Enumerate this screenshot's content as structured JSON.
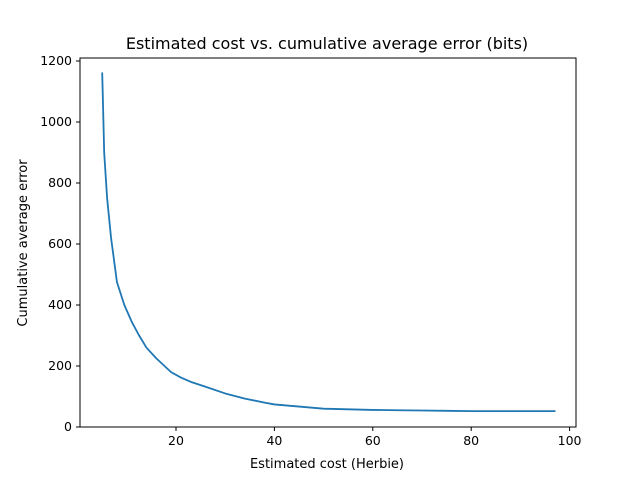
{
  "chart_data": {
    "type": "line",
    "title": "Estimated cost vs. cumulative average error (bits)",
    "xlabel": "Estimated cost (Herbie)",
    "ylabel": "Cumulative average error",
    "xlim": [
      0,
      100
    ],
    "ylim": [
      0,
      1200
    ],
    "x_ticks": [
      20,
      40,
      60,
      80,
      100
    ],
    "y_ticks": [
      0,
      200,
      400,
      600,
      800,
      1000,
      1200
    ],
    "x_tick_labels": [
      "20",
      "40",
      "60",
      "80",
      "100"
    ],
    "y_tick_labels": [
      "0",
      "200",
      "400",
      "600",
      "800",
      "1000",
      "1200"
    ],
    "grid": false,
    "legend": "none",
    "series": [
      {
        "color": "#1f77b4",
        "points": [
          [
            5.0,
            1160
          ],
          [
            5.1,
            1100
          ],
          [
            5.4,
            900
          ],
          [
            6.0,
            750
          ],
          [
            6.8,
            620
          ],
          [
            8.0,
            475
          ],
          [
            9.5,
            400
          ],
          [
            11.0,
            345
          ],
          [
            12.5,
            300
          ],
          [
            14.0,
            260
          ],
          [
            16.0,
            225
          ],
          [
            19.0,
            180
          ],
          [
            21.0,
            162
          ],
          [
            23.0,
            148
          ],
          [
            26.0,
            132
          ],
          [
            30.0,
            110
          ],
          [
            34.0,
            93
          ],
          [
            38.0,
            80
          ],
          [
            40.0,
            74
          ],
          [
            45.0,
            67
          ],
          [
            50.0,
            60
          ],
          [
            55.0,
            58
          ],
          [
            60.0,
            56
          ],
          [
            65.0,
            55
          ],
          [
            70.0,
            54
          ],
          [
            75.0,
            53
          ],
          [
            80.0,
            52
          ],
          [
            85.0,
            52
          ],
          [
            90.0,
            52
          ],
          [
            97.0,
            52
          ]
        ]
      }
    ]
  }
}
